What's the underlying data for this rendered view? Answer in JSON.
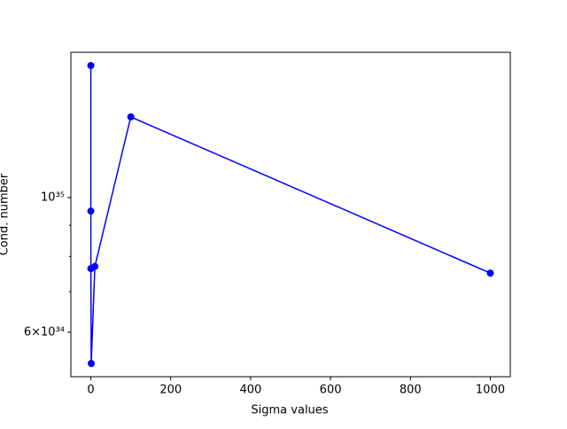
{
  "chart_data": {
    "type": "line",
    "x_label": "Sigma values",
    "y_label": "Cond. number",
    "x": [
      0.001,
      0.01,
      0.1,
      1,
      10,
      100,
      1000
    ],
    "series": [
      {
        "color": "#0000ff",
        "values": [
          1.65e+35,
          9.5e+34,
          7.64e+34,
          5.33e+34,
          7.7e+34,
          1.358e+35,
          7.51e+34
        ]
      }
    ],
    "xlim": [
      -50,
      1050
    ],
    "xticks": [
      0,
      200,
      400,
      600,
      800,
      1000
    ],
    "ylim": [
      5.07e+34,
      1.735e+35
    ],
    "y_log": true,
    "yticks": [
      {
        "value": 6e+34,
        "label": "6×10³⁴"
      },
      {
        "value": 1e+35,
        "label": "10³⁵"
      }
    ],
    "y_minor_ticks": [
      7e+34,
      8e+34,
      9e+34
    ]
  }
}
